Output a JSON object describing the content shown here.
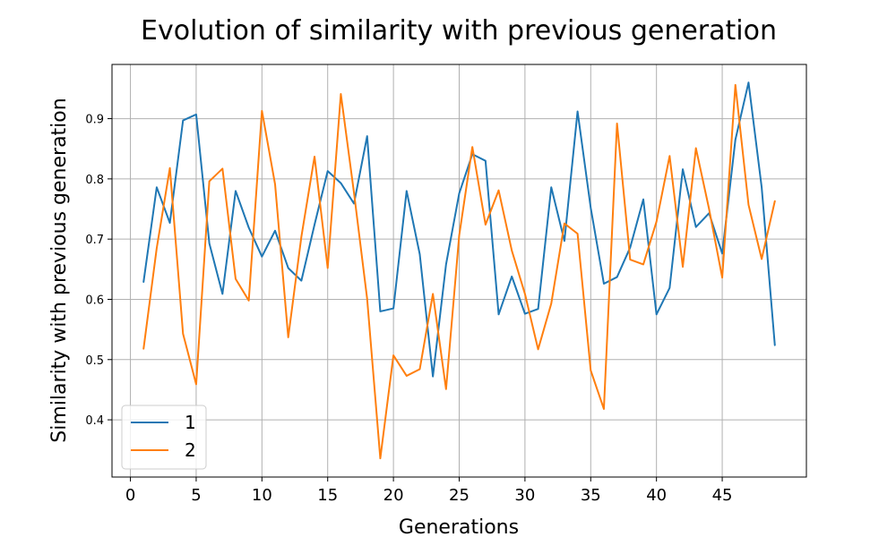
{
  "chart_data": {
    "type": "line",
    "title": "Evolution of similarity with previous generation",
    "xlabel": "Generations",
    "ylabel": "Similarity with previous generation",
    "xlim": [
      -1.4,
      51.4
    ],
    "ylim": [
      0.305,
      0.99
    ],
    "xticks": [
      0,
      5,
      10,
      15,
      20,
      25,
      30,
      35,
      40,
      45
    ],
    "yticks": [
      0.4,
      0.5,
      0.6,
      0.7,
      0.8,
      0.9
    ],
    "ytick_labels": [
      "0.4",
      "0.5",
      "0.6",
      "0.7",
      "0.8",
      "0.9"
    ],
    "grid": true,
    "legend_position": "lower-left",
    "x": [
      1,
      2,
      3,
      4,
      5,
      6,
      7,
      8,
      9,
      10,
      11,
      12,
      13,
      14,
      15,
      16,
      17,
      18,
      19,
      20,
      21,
      22,
      23,
      24,
      25,
      26,
      27,
      28,
      29,
      30,
      31,
      32,
      33,
      34,
      35,
      36,
      37,
      38,
      39,
      40,
      41,
      42,
      43,
      44,
      45,
      46,
      47,
      48,
      49
    ],
    "series": [
      {
        "name": "1",
        "color": "#1f77b4",
        "values": [
          0.629,
          0.786,
          0.727,
          0.897,
          0.907,
          0.693,
          0.609,
          0.78,
          0.719,
          0.671,
          0.714,
          0.652,
          0.631,
          0.724,
          0.813,
          0.793,
          0.759,
          0.871,
          0.58,
          0.585,
          0.78,
          0.675,
          0.472,
          0.658,
          0.776,
          0.841,
          0.83,
          0.575,
          0.638,
          0.576,
          0.584,
          0.786,
          0.697,
          0.912,
          0.752,
          0.626,
          0.637,
          0.686,
          0.766,
          0.575,
          0.619,
          0.816,
          0.72,
          0.743,
          0.676,
          0.865,
          0.96,
          0.786,
          0.524
        ]
      },
      {
        "name": "2",
        "color": "#ff7f0e",
        "values": [
          0.518,
          0.685,
          0.818,
          0.543,
          0.459,
          0.796,
          0.817,
          0.634,
          0.598,
          0.913,
          0.791,
          0.537,
          0.704,
          0.837,
          0.652,
          0.941,
          0.777,
          0.601,
          0.336,
          0.507,
          0.473,
          0.484,
          0.609,
          0.451,
          0.706,
          0.853,
          0.724,
          0.781,
          0.681,
          0.609,
          0.517,
          0.593,
          0.726,
          0.709,
          0.482,
          0.418,
          0.892,
          0.666,
          0.658,
          0.729,
          0.838,
          0.654,
          0.851,
          0.75,
          0.636,
          0.956,
          0.757,
          0.667,
          0.763
        ]
      }
    ]
  }
}
